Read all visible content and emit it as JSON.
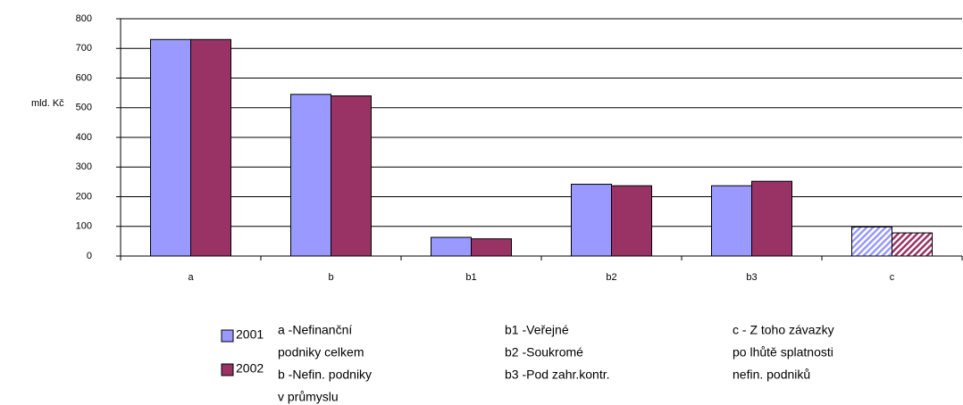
{
  "chart_data": {
    "type": "bar",
    "y_label": "mld. Kč",
    "categories": [
      "a",
      "b",
      "b1",
      "b2",
      "b3",
      "c"
    ],
    "series": [
      {
        "name": "2001",
        "color": "#9999ff",
        "values": [
          730,
          545,
          63,
          242,
          237,
          98
        ]
      },
      {
        "name": "2002",
        "color": "#993366",
        "values": [
          730,
          540,
          58,
          237,
          252,
          78
        ]
      }
    ],
    "hatched_category": "c",
    "ylim": [
      0,
      800
    ],
    "yticks": [
      0,
      100,
      200,
      300,
      400,
      500,
      600,
      700,
      800
    ],
    "grid": true,
    "notes": [
      [
        "a -Nefinanční",
        "podniky celkem",
        "b -Nefin. podniky",
        "v průmyslu"
      ],
      [
        "b1 -Veřejné",
        "b2 -Soukromé",
        "b3 -Pod zahr.kontr."
      ],
      [
        "c - Z toho závazky",
        "po lhůtě splatnosti",
        "nefin. podniků"
      ]
    ]
  }
}
